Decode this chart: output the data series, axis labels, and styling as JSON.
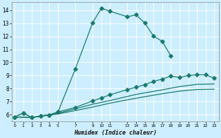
{
  "xlabel": "Humidex (Indice chaleur)",
  "bg_color": "#cceeff",
  "grid_color": "#ffffff",
  "line_color": "#1a7a6e",
  "series1_x": [
    0,
    1,
    2,
    3,
    4,
    5,
    7,
    9,
    10,
    11,
    13,
    14,
    15,
    16,
    17,
    18
  ],
  "series1_y": [
    5.82,
    6.12,
    5.78,
    5.9,
    5.98,
    6.2,
    9.5,
    13.05,
    14.15,
    13.92,
    13.5,
    13.65,
    13.02,
    12.02,
    11.62,
    10.5
  ],
  "series2_x": [
    0,
    1,
    2,
    3,
    4,
    5,
    7,
    9,
    10,
    11,
    13,
    14,
    15,
    16,
    17,
    18,
    19,
    20,
    21,
    22,
    23
  ],
  "series2_y": [
    5.82,
    6.12,
    5.78,
    5.9,
    5.98,
    6.2,
    6.55,
    7.05,
    7.28,
    7.52,
    7.92,
    8.1,
    8.3,
    8.55,
    8.72,
    8.95,
    8.85,
    9.0,
    9.05,
    9.05,
    8.8
  ],
  "series3_x": [
    0,
    2,
    5,
    9,
    11,
    14,
    17,
    19,
    21,
    23
  ],
  "series3_y": [
    5.82,
    5.78,
    6.1,
    6.8,
    7.08,
    7.55,
    7.9,
    8.15,
    8.32,
    8.35
  ],
  "series4_x": [
    0,
    2,
    5,
    9,
    11,
    14,
    17,
    19,
    21,
    23
  ],
  "series4_y": [
    5.82,
    5.78,
    6.05,
    6.58,
    6.88,
    7.26,
    7.6,
    7.8,
    7.93,
    7.95
  ],
  "yticks": [
    6,
    7,
    8,
    9,
    10,
    11,
    12,
    13,
    14
  ],
  "xtick_positions": [
    0,
    1,
    2,
    3,
    4,
    5,
    7,
    9,
    10,
    11,
    13,
    14,
    15,
    16,
    17,
    18,
    19,
    20,
    21,
    22,
    23
  ],
  "xtick_labels": [
    "0",
    "1",
    "2",
    "3",
    "4",
    "5",
    "7",
    "9",
    "10",
    "11",
    "13",
    "14",
    "15",
    "16",
    "17",
    "18",
    "19",
    "20",
    "21",
    "22",
    "23"
  ],
  "xlim": [
    -0.3,
    23.5
  ],
  "ylim": [
    5.5,
    14.6
  ]
}
